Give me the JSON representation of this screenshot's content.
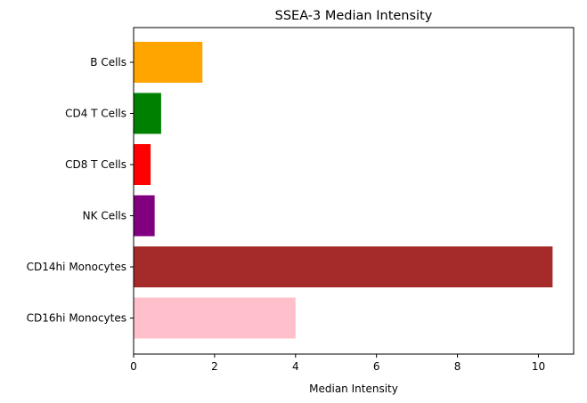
{
  "chart_data": {
    "type": "bar",
    "orientation": "horizontal",
    "title": "SSEA-3 Median Intensity",
    "xlabel": "Median Intensity",
    "ylabel": "",
    "categories": [
      "B Cells",
      "CD4 T Cells",
      "CD8 T Cells",
      "NK Cells",
      "CD14hi Monocytes",
      "CD16hi Monocytes"
    ],
    "values": [
      1.7,
      0.68,
      0.42,
      0.52,
      10.35,
      4.0
    ],
    "colors": [
      "#FFA500",
      "#008000",
      "#FF0000",
      "#800080",
      "#A52A2A",
      "#FFC0CB"
    ],
    "xlim": [
      0,
      10.87
    ],
    "xticks": [
      0,
      2,
      4,
      6,
      8,
      10
    ],
    "grid": false,
    "legend": "none"
  }
}
